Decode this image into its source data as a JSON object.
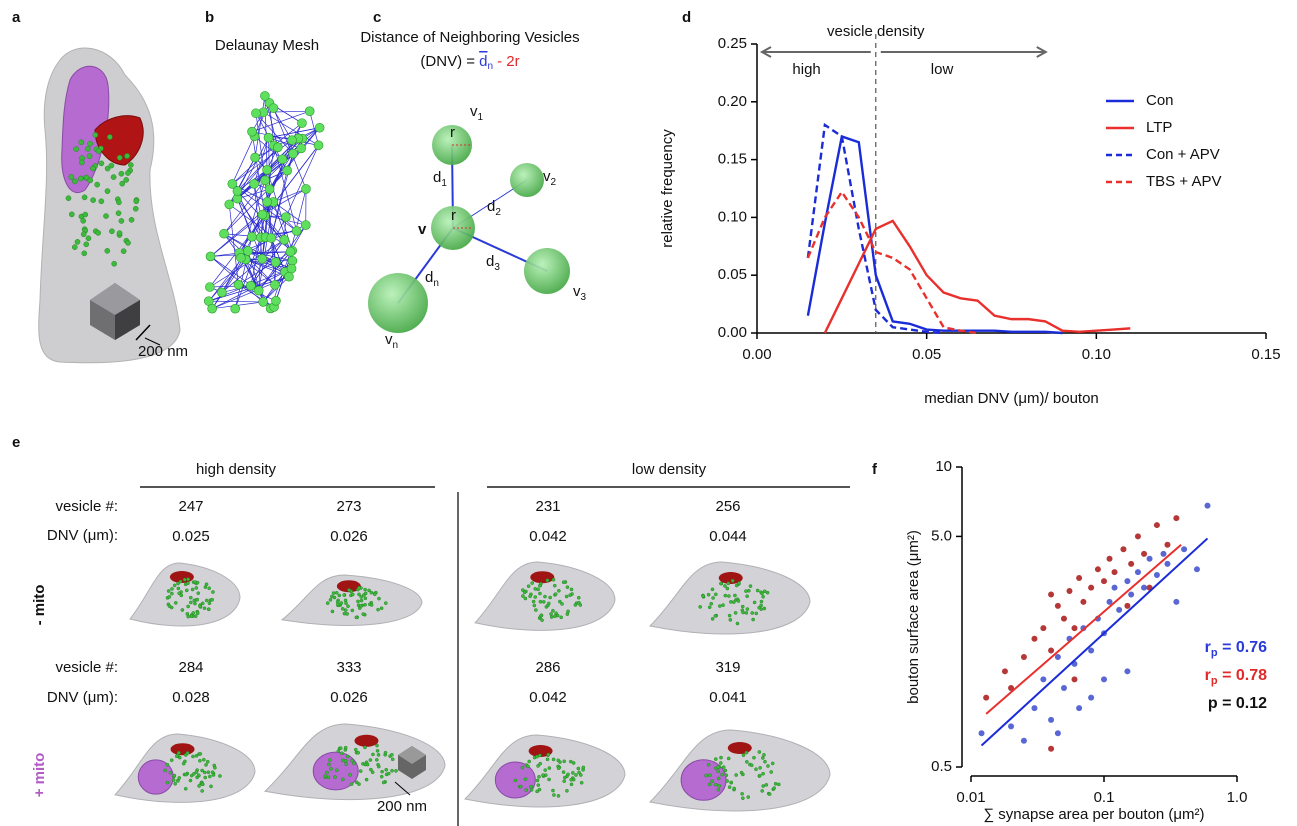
{
  "panel_labels": [
    "a",
    "b",
    "c",
    "d",
    "e",
    "f"
  ],
  "panel_a": {
    "scale": "200 nm"
  },
  "panel_b": {
    "title": "Delaunay Mesh"
  },
  "panel_c": {
    "title": "Distance of Neighboring Vesicles",
    "formula": {
      "lhs": "(DNV) =",
      "d": "d",
      "d_sub": "n",
      "rest": "- 2r"
    },
    "nodes": [
      {
        "label": "v",
        "sub": "1"
      },
      {
        "label": "v",
        "sub": "2"
      },
      {
        "label": "v"
      },
      {
        "label": "v",
        "sub": "3"
      },
      {
        "label": "v",
        "sub": "n"
      }
    ],
    "edges": [
      {
        "label": "d",
        "sub": "1"
      },
      {
        "label": "d",
        "sub": "2"
      },
      {
        "label": "d",
        "sub": "3"
      },
      {
        "label": "d",
        "sub": "n"
      }
    ],
    "radius_label": "r"
  },
  "panel_e": {
    "groups": [
      "high density",
      "low density"
    ],
    "row_labels": [
      "vesicle #:",
      "DNV (μm):"
    ],
    "rows": [
      {
        "label": "- mito",
        "vesicles": [
          247,
          273,
          231,
          256
        ],
        "dnv": [
          0.025,
          0.026,
          0.042,
          0.044
        ]
      },
      {
        "label": "+ mito",
        "vesicles": [
          284,
          333,
          286,
          319
        ],
        "dnv": [
          0.028,
          0.026,
          0.042,
          0.041
        ]
      }
    ],
    "scale": "200 nm"
  },
  "chart_data": [
    {
      "type": "line",
      "x_label": "median DNV (μm)/ bouton",
      "y_label": "relative frequency",
      "annotations": {
        "top": "vesicle density",
        "left": "high",
        "right": "low"
      },
      "divider_x": 0.035,
      "x": [
        0.015,
        0.02,
        0.025,
        0.03,
        0.035,
        0.04,
        0.045,
        0.05,
        0.055,
        0.06,
        0.065,
        0.07,
        0.075,
        0.08,
        0.085,
        0.09,
        0.095,
        0.1,
        0.105,
        0.11
      ],
      "series": [
        {
          "name": "Con",
          "color": "#1a2bd8",
          "dashed": false,
          "values": [
            0.015,
            0.095,
            0.17,
            0.165,
            0.05,
            0.01,
            0.008,
            0.003,
            0.002,
            0.002,
            0.002,
            0.002,
            0.001,
            0.001,
            0.001,
            0.0,
            null,
            null,
            null,
            null
          ]
        },
        {
          "name": "LTP",
          "color": "#e8302c",
          "dashed": false,
          "values": [
            null,
            0.0,
            0.03,
            0.06,
            0.09,
            0.097,
            0.075,
            0.05,
            0.035,
            0.03,
            0.028,
            0.015,
            0.012,
            0.012,
            0.01,
            0.002,
            0.001,
            0.002,
            0.003,
            0.004
          ]
        },
        {
          "name": "Con + APV",
          "color": "#1a2bd8",
          "dashed": true,
          "values": [
            0.065,
            0.18,
            0.17,
            0.09,
            0.02,
            0.005,
            0.003,
            0.001,
            0.0,
            null,
            null,
            null,
            null,
            null,
            null,
            null,
            null,
            null,
            null,
            null
          ]
        },
        {
          "name": "TBS + APV",
          "color": "#e8302c",
          "dashed": true,
          "values": [
            0.065,
            0.1,
            0.122,
            0.1,
            0.07,
            0.065,
            0.055,
            0.03,
            0.005,
            0.002,
            0.0,
            null,
            null,
            null,
            null,
            null,
            null,
            null,
            null,
            null
          ]
        }
      ],
      "xlim": [
        0,
        0.15
      ],
      "xticks": [
        {
          "value": 0,
          "label": "0.00"
        },
        {
          "value": 0.05,
          "label": "0.05"
        },
        {
          "value": 0.1,
          "label": "0.10"
        },
        {
          "value": 0.15,
          "label": "0.15"
        }
      ],
      "ylim": [
        0,
        0.25
      ],
      "yticks": [
        {
          "value": 0,
          "label": "0.00"
        },
        {
          "value": 0.05,
          "label": "0.05"
        },
        {
          "value": 0.1,
          "label": "0.10"
        },
        {
          "value": 0.15,
          "label": "0.15"
        },
        {
          "value": 0.2,
          "label": "0.20"
        },
        {
          "value": 0.25,
          "label": "0.25"
        }
      ],
      "legend": "upper right",
      "grid": false
    },
    {
      "type": "scatter",
      "x_label": "∑ synapse area per bouton (μm²)",
      "y_label": "bouton surface area (μm²)",
      "log_x": true,
      "log_y": true,
      "xlim": [
        0.01,
        1.0
      ],
      "xticks": [
        {
          "value": 0.01,
          "label": "0.01"
        },
        0.1,
        {
          "value": 1,
          "label": "1.0"
        }
      ],
      "ylim": [
        0.5,
        10
      ],
      "yticks": [
        0.5,
        {
          "value": 5,
          "label": "5.0"
        },
        10
      ],
      "series": [
        {
          "color": "#3b4ccc",
          "x": [
            0.012,
            0.02,
            0.025,
            0.03,
            0.035,
            0.04,
            0.045,
            0.05,
            0.055,
            0.06,
            0.065,
            0.07,
            0.08,
            0.09,
            0.1,
            0.11,
            0.12,
            0.13,
            0.15,
            0.16,
            0.18,
            0.2,
            0.22,
            0.25,
            0.28,
            0.3,
            0.35,
            0.4,
            0.5,
            0.6,
            0.045,
            0.08,
            0.1,
            0.15
          ],
          "y": [
            0.7,
            0.75,
            0.65,
            0.9,
            1.2,
            0.8,
            1.5,
            1.1,
            1.8,
            1.4,
            0.9,
            2.0,
            1.6,
            2.2,
            1.9,
            2.6,
            3.0,
            2.4,
            3.2,
            2.8,
            3.5,
            3.0,
            4.0,
            3.4,
            4.2,
            3.8,
            2.6,
            4.4,
            3.6,
            6.8,
            0.7,
            1.0,
            1.2,
            1.3
          ],
          "fit": {
            "x": [
              0.012,
              0.6
            ],
            "y": [
              0.62,
              4.9
            ]
          }
        },
        {
          "color": "#a81414",
          "x": [
            0.013,
            0.018,
            0.02,
            0.025,
            0.03,
            0.035,
            0.04,
            0.04,
            0.045,
            0.05,
            0.055,
            0.06,
            0.065,
            0.07,
            0.08,
            0.09,
            0.1,
            0.11,
            0.12,
            0.14,
            0.16,
            0.18,
            0.2,
            0.25,
            0.3,
            0.35,
            0.04,
            0.06,
            0.15,
            0.22
          ],
          "y": [
            1.0,
            1.3,
            1.1,
            1.5,
            1.8,
            2.0,
            1.6,
            0.6,
            2.5,
            2.2,
            2.9,
            2.0,
            3.3,
            2.6,
            3.0,
            3.6,
            3.2,
            4.0,
            3.5,
            4.4,
            3.8,
            5.0,
            4.2,
            5.6,
            4.6,
            6.0,
            2.8,
            1.2,
            2.5,
            3.0
          ],
          "fit": {
            "x": [
              0.013,
              0.38
            ],
            "y": [
              0.85,
              4.6
            ]
          }
        }
      ],
      "stats": [
        {
          "sym": "r",
          "sub": "p",
          "rest": " = 0.76",
          "color": "#2a3ad8"
        },
        {
          "sym": "r",
          "sub": "p",
          "rest": " = 0.78",
          "color": "#e02a2a"
        },
        {
          "sym": "p = 0.12",
          "color": "#111111"
        }
      ]
    }
  ]
}
